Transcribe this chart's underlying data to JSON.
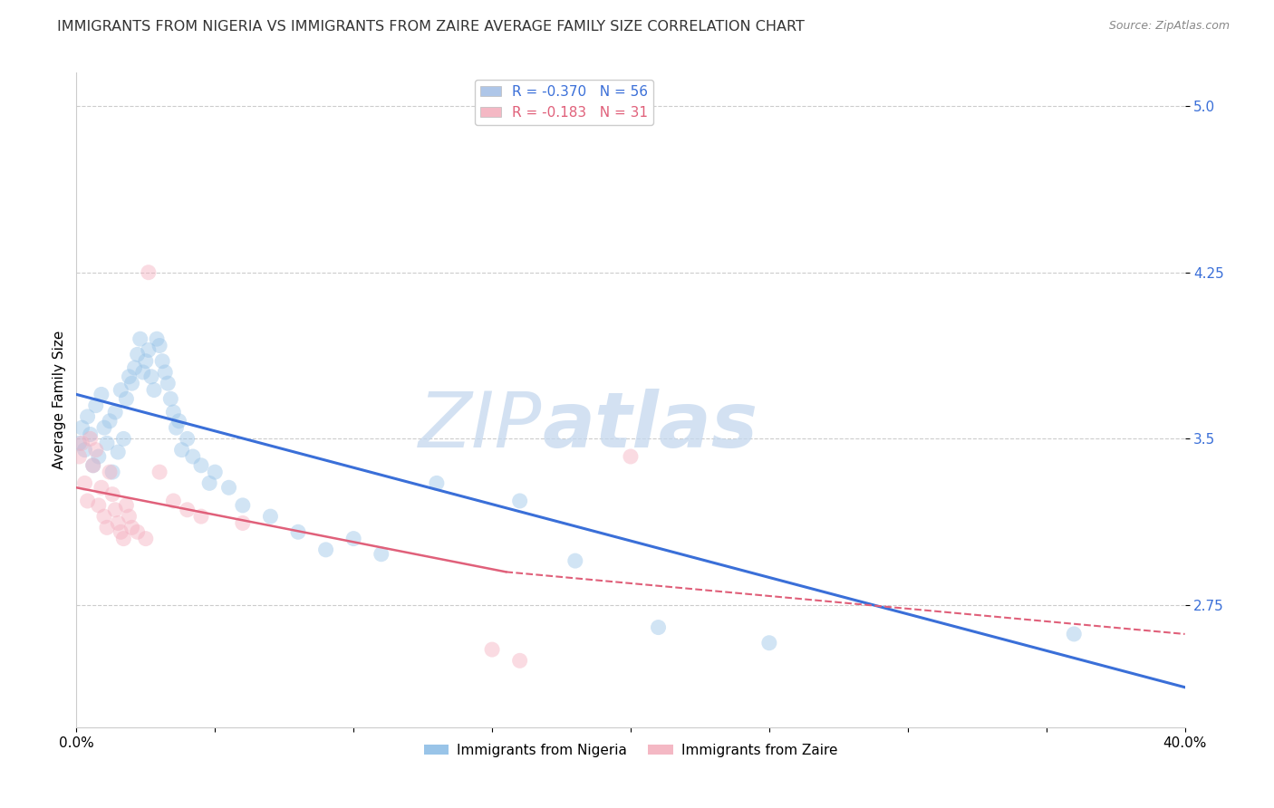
{
  "title": "IMMIGRANTS FROM NIGERIA VS IMMIGRANTS FROM ZAIRE AVERAGE FAMILY SIZE CORRELATION CHART",
  "source": "Source: ZipAtlas.com",
  "ylabel": "Average Family Size",
  "xlim": [
    0.0,
    0.4
  ],
  "ylim": [
    2.2,
    5.15
  ],
  "yticks": [
    2.75,
    3.5,
    4.25,
    5.0
  ],
  "xticks": [
    0.0,
    0.05,
    0.1,
    0.15,
    0.2,
    0.25,
    0.3,
    0.35,
    0.4
  ],
  "xtick_labels": [
    "0.0%",
    "",
    "",
    "",
    "",
    "",
    "",
    "",
    "40.0%"
  ],
  "legend_top": [
    {
      "label": "R = -0.370   N = 56",
      "facecolor": "#aec6e8"
    },
    {
      "label": "R = -0.183   N = 31",
      "facecolor": "#f4b8c4"
    }
  ],
  "legend_bottom": [
    {
      "label": "Immigrants from Nigeria",
      "facecolor": "#99c4e8"
    },
    {
      "label": "Immigrants from Zaire",
      "facecolor": "#f4b8c4"
    }
  ],
  "nigeria_color": "#99c4e8",
  "zaire_color": "#f4b0c0",
  "nigeria_line_color": "#3a6fd8",
  "zaire_line_color": "#e0607a",
  "nigeria_line": [
    [
      0.0,
      3.7
    ],
    [
      0.4,
      2.38
    ]
  ],
  "zaire_line_solid": [
    [
      0.0,
      3.28
    ],
    [
      0.155,
      2.9
    ]
  ],
  "zaire_line_dashed": [
    [
      0.155,
      2.9
    ],
    [
      0.4,
      2.62
    ]
  ],
  "nigeria_scatter": [
    [
      0.001,
      3.48
    ],
    [
      0.002,
      3.55
    ],
    [
      0.003,
      3.45
    ],
    [
      0.004,
      3.6
    ],
    [
      0.005,
      3.52
    ],
    [
      0.006,
      3.38
    ],
    [
      0.007,
      3.65
    ],
    [
      0.008,
      3.42
    ],
    [
      0.009,
      3.7
    ],
    [
      0.01,
      3.55
    ],
    [
      0.011,
      3.48
    ],
    [
      0.012,
      3.58
    ],
    [
      0.013,
      3.35
    ],
    [
      0.014,
      3.62
    ],
    [
      0.015,
      3.44
    ],
    [
      0.016,
      3.72
    ],
    [
      0.017,
      3.5
    ],
    [
      0.018,
      3.68
    ],
    [
      0.019,
      3.78
    ],
    [
      0.02,
      3.75
    ],
    [
      0.021,
      3.82
    ],
    [
      0.022,
      3.88
    ],
    [
      0.023,
      3.95
    ],
    [
      0.024,
      3.8
    ],
    [
      0.025,
      3.85
    ],
    [
      0.026,
      3.9
    ],
    [
      0.027,
      3.78
    ],
    [
      0.028,
      3.72
    ],
    [
      0.029,
      3.95
    ],
    [
      0.03,
      3.92
    ],
    [
      0.031,
      3.85
    ],
    [
      0.032,
      3.8
    ],
    [
      0.033,
      3.75
    ],
    [
      0.034,
      3.68
    ],
    [
      0.035,
      3.62
    ],
    [
      0.036,
      3.55
    ],
    [
      0.037,
      3.58
    ],
    [
      0.038,
      3.45
    ],
    [
      0.04,
      3.5
    ],
    [
      0.042,
      3.42
    ],
    [
      0.045,
      3.38
    ],
    [
      0.048,
      3.3
    ],
    [
      0.05,
      3.35
    ],
    [
      0.055,
      3.28
    ],
    [
      0.06,
      3.2
    ],
    [
      0.07,
      3.15
    ],
    [
      0.08,
      3.08
    ],
    [
      0.09,
      3.0
    ],
    [
      0.1,
      3.05
    ],
    [
      0.11,
      2.98
    ],
    [
      0.13,
      3.3
    ],
    [
      0.16,
      3.22
    ],
    [
      0.18,
      2.95
    ],
    [
      0.21,
      2.65
    ],
    [
      0.25,
      2.58
    ],
    [
      0.36,
      2.62
    ]
  ],
  "zaire_scatter": [
    [
      0.001,
      3.42
    ],
    [
      0.002,
      3.48
    ],
    [
      0.003,
      3.3
    ],
    [
      0.004,
      3.22
    ],
    [
      0.005,
      3.5
    ],
    [
      0.006,
      3.38
    ],
    [
      0.007,
      3.45
    ],
    [
      0.008,
      3.2
    ],
    [
      0.009,
      3.28
    ],
    [
      0.01,
      3.15
    ],
    [
      0.011,
      3.1
    ],
    [
      0.012,
      3.35
    ],
    [
      0.013,
      3.25
    ],
    [
      0.014,
      3.18
    ],
    [
      0.015,
      3.12
    ],
    [
      0.016,
      3.08
    ],
    [
      0.017,
      3.05
    ],
    [
      0.018,
      3.2
    ],
    [
      0.019,
      3.15
    ],
    [
      0.02,
      3.1
    ],
    [
      0.022,
      3.08
    ],
    [
      0.025,
      3.05
    ],
    [
      0.026,
      4.25
    ],
    [
      0.03,
      3.35
    ],
    [
      0.035,
      3.22
    ],
    [
      0.04,
      3.18
    ],
    [
      0.045,
      3.15
    ],
    [
      0.06,
      3.12
    ],
    [
      0.2,
      3.42
    ],
    [
      0.15,
      2.55
    ],
    [
      0.16,
      2.5
    ]
  ],
  "background_color": "#ffffff",
  "title_fontsize": 11.5,
  "axis_label_fontsize": 11,
  "tick_fontsize": 11,
  "marker_size": 150,
  "marker_alpha": 0.45,
  "watermark_zip": "ZIP",
  "watermark_atlas": "atlas",
  "watermark_color_zip": "#c5d8ee",
  "watermark_color_atlas": "#c5d8ee",
  "watermark_fontsize": 62
}
